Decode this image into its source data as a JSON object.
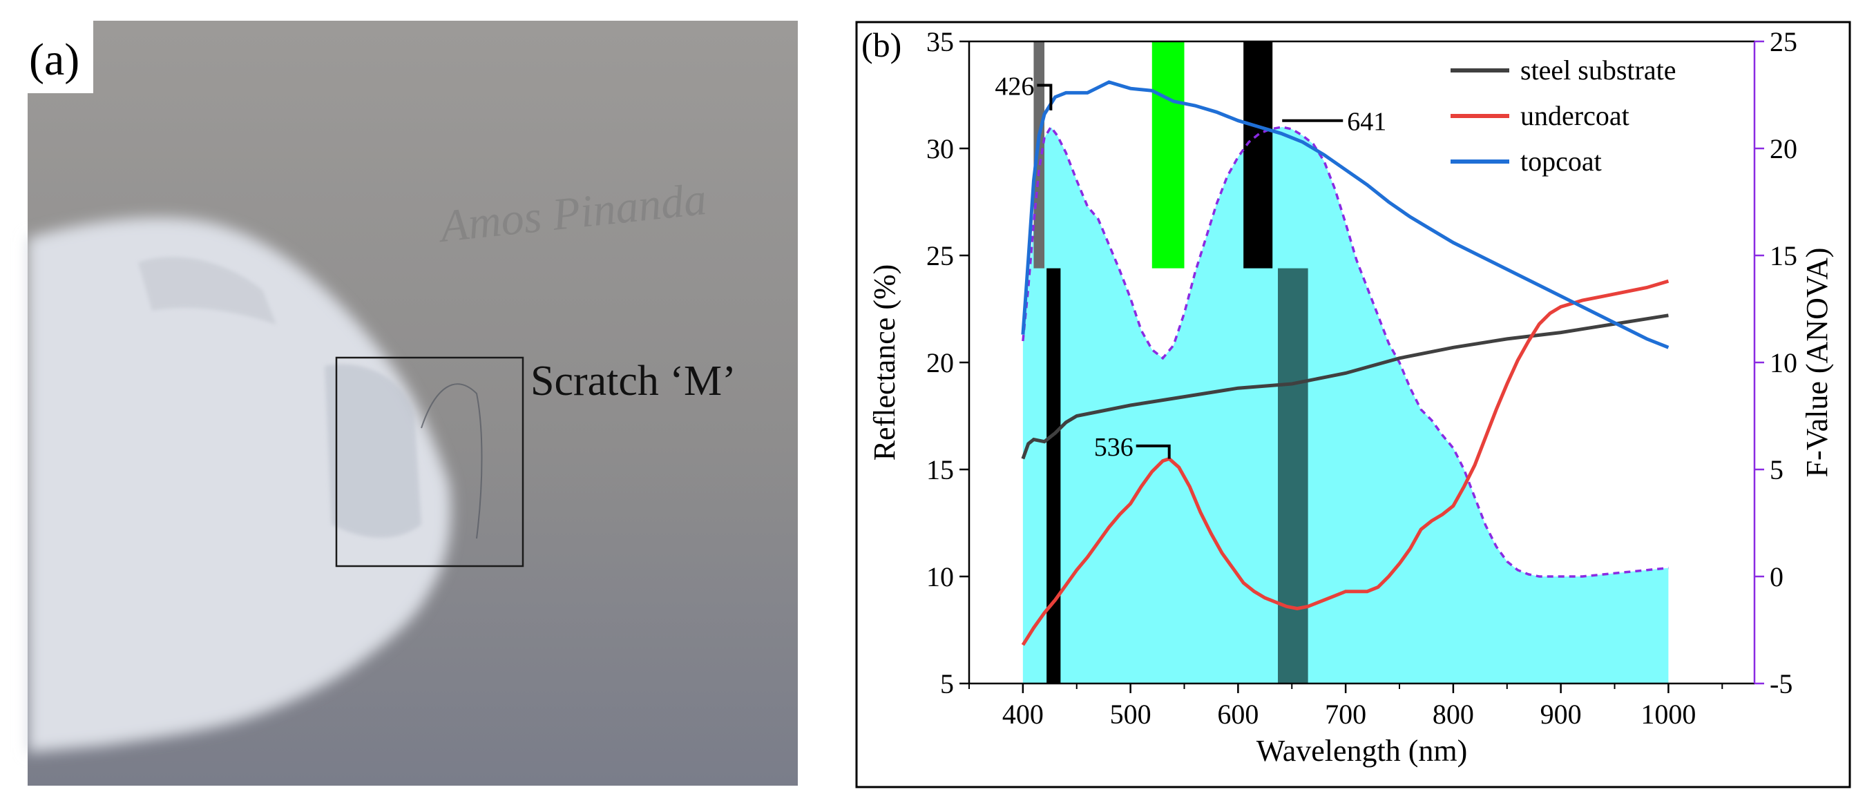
{
  "panel_a": {
    "label": "(a)",
    "annotation": "Scratch ‘M’",
    "handwriting": "Amos Pinanda",
    "colors": {
      "background": "#8f8e8e",
      "primer": "#dfe1e7",
      "frame": "#1a1a1a"
    }
  },
  "panel_b": {
    "label": "(b)",
    "colors": {
      "fill": "#7ffcfd",
      "fvalue_line": "#8a2be2",
      "steel": "#404040",
      "undercoat": "#e8403a",
      "topcoat": "#1f6fd6",
      "green_band": "#00ff00",
      "black_band": "#000000",
      "dark_band": "#1e5252",
      "grey_band": "#6b6b6b"
    }
  },
  "chart_data": {
    "type": "line",
    "title": "",
    "xlabel": "Wavelength (nm)",
    "ylabel": "Reflectance (%)",
    "y2label": "F-Value (ANOVA)",
    "xlim": [
      350,
      1080
    ],
    "ylim": [
      5,
      35
    ],
    "y2lim": [
      -5,
      25
    ],
    "xticks": [
      400,
      500,
      600,
      700,
      800,
      900,
      1000
    ],
    "yticks": [
      5,
      10,
      15,
      20,
      25,
      30,
      35
    ],
    "y2ticks": [
      -5,
      0,
      5,
      10,
      15,
      20,
      25
    ],
    "legend_position": "top-right",
    "series": [
      {
        "name": "steel substrate",
        "color": "#404040",
        "x": [
          400,
          405,
          410,
          420,
          430,
          440,
          450,
          500,
          550,
          600,
          650,
          700,
          750,
          800,
          850,
          900,
          950,
          1000
        ],
        "y": [
          15.5,
          16.2,
          16.4,
          16.3,
          16.7,
          17.2,
          17.5,
          18.0,
          18.4,
          18.8,
          19.0,
          19.5,
          20.2,
          20.7,
          21.1,
          21.4,
          21.8,
          22.2
        ]
      },
      {
        "name": "undercoat",
        "color": "#e8403a",
        "x": [
          400,
          410,
          420,
          430,
          440,
          450,
          460,
          470,
          480,
          490,
          500,
          510,
          520,
          530,
          536,
          545,
          555,
          565,
          575,
          585,
          595,
          605,
          615,
          625,
          635,
          645,
          655,
          665,
          675,
          690,
          700,
          710,
          720,
          730,
          740,
          750,
          760,
          770,
          780,
          790,
          800,
          810,
          820,
          830,
          840,
          850,
          860,
          870,
          880,
          890,
          900,
          920,
          940,
          960,
          980,
          1000
        ],
        "y": [
          6.8,
          7.6,
          8.3,
          8.9,
          9.6,
          10.3,
          10.9,
          11.6,
          12.3,
          12.9,
          13.4,
          14.2,
          14.9,
          15.4,
          15.5,
          15.1,
          14.2,
          13.0,
          12.0,
          11.1,
          10.4,
          9.7,
          9.3,
          9.0,
          8.8,
          8.6,
          8.5,
          8.6,
          8.8,
          9.1,
          9.3,
          9.3,
          9.3,
          9.5,
          10.0,
          10.6,
          11.3,
          12.2,
          12.6,
          12.9,
          13.3,
          14.2,
          15.2,
          16.5,
          17.8,
          19.0,
          20.1,
          21.0,
          21.8,
          22.3,
          22.6,
          22.9,
          23.1,
          23.3,
          23.5,
          23.8
        ]
      },
      {
        "name": "topcoat",
        "color": "#1f6fd6",
        "x": [
          400,
          405,
          410,
          415,
          420,
          425,
          430,
          440,
          460,
          480,
          500,
          520,
          540,
          560,
          580,
          600,
          620,
          640,
          660,
          680,
          700,
          720,
          740,
          760,
          780,
          800,
          820,
          840,
          860,
          880,
          900,
          920,
          940,
          960,
          980,
          1000
        ],
        "y": [
          21.3,
          24.8,
          28.5,
          30.6,
          31.6,
          32.0,
          32.4,
          32.6,
          32.6,
          33.1,
          32.8,
          32.7,
          32.2,
          32.0,
          31.7,
          31.3,
          31.0,
          30.7,
          30.3,
          29.7,
          29.0,
          28.3,
          27.5,
          26.8,
          26.2,
          25.6,
          25.1,
          24.6,
          24.1,
          23.6,
          23.1,
          22.6,
          22.1,
          21.6,
          21.1,
          20.7
        ]
      },
      {
        "name": "F-Value",
        "axis": "right",
        "color": "#8a2be2",
        "x": [
          400,
          405,
          410,
          415,
          420,
          426,
          432,
          440,
          450,
          460,
          470,
          480,
          490,
          500,
          510,
          520,
          530,
          540,
          550,
          560,
          570,
          580,
          590,
          600,
          610,
          620,
          630,
          641,
          650,
          660,
          670,
          680,
          690,
          700,
          710,
          720,
          730,
          740,
          750,
          760,
          770,
          780,
          790,
          800,
          810,
          820,
          830,
          840,
          850,
          860,
          870,
          880,
          890,
          900,
          920,
          940,
          960,
          980,
          1000
        ],
        "y": [
          11.0,
          13.5,
          16.5,
          19.0,
          20.5,
          21.0,
          20.6,
          19.8,
          18.5,
          17.3,
          16.7,
          15.5,
          14.3,
          13.0,
          11.5,
          10.6,
          10.2,
          10.8,
          12.3,
          14.2,
          15.8,
          17.4,
          18.7,
          19.6,
          20.3,
          20.7,
          20.9,
          21.0,
          20.9,
          20.6,
          20.2,
          19.4,
          18.1,
          16.5,
          14.8,
          13.5,
          12.2,
          10.9,
          10.0,
          8.8,
          7.8,
          7.3,
          6.6,
          6.0,
          5.0,
          3.7,
          2.4,
          1.4,
          0.7,
          0.3,
          0.1,
          0.0,
          0.0,
          0.0,
          0.0,
          0.1,
          0.2,
          0.3,
          0.4
        ]
      }
    ],
    "annotations": [
      {
        "text": "426",
        "x": 426,
        "y": 32.1
      },
      {
        "text": "641",
        "x": 641,
        "y": 31.3
      },
      {
        "text": "536",
        "x": 536,
        "y": 15.5
      }
    ],
    "bands": [
      {
        "color": "#6b6b6b",
        "x0": 410,
        "x1": 420,
        "y0": 24.4,
        "y1": 35
      },
      {
        "color": "#00ff00",
        "x0": 520,
        "x1": 550,
        "y0": 24.4,
        "y1": 35
      },
      {
        "color": "#000000",
        "x0": 605,
        "x1": 632,
        "y0": 24.4,
        "y1": 35
      },
      {
        "color": "#000000",
        "x0": 422,
        "x1": 435,
        "y0": 5,
        "y1": 24.4
      },
      {
        "color": "#1e5252",
        "x0": 637,
        "x1": 665,
        "y0": 5,
        "y1": 24.4
      }
    ]
  }
}
